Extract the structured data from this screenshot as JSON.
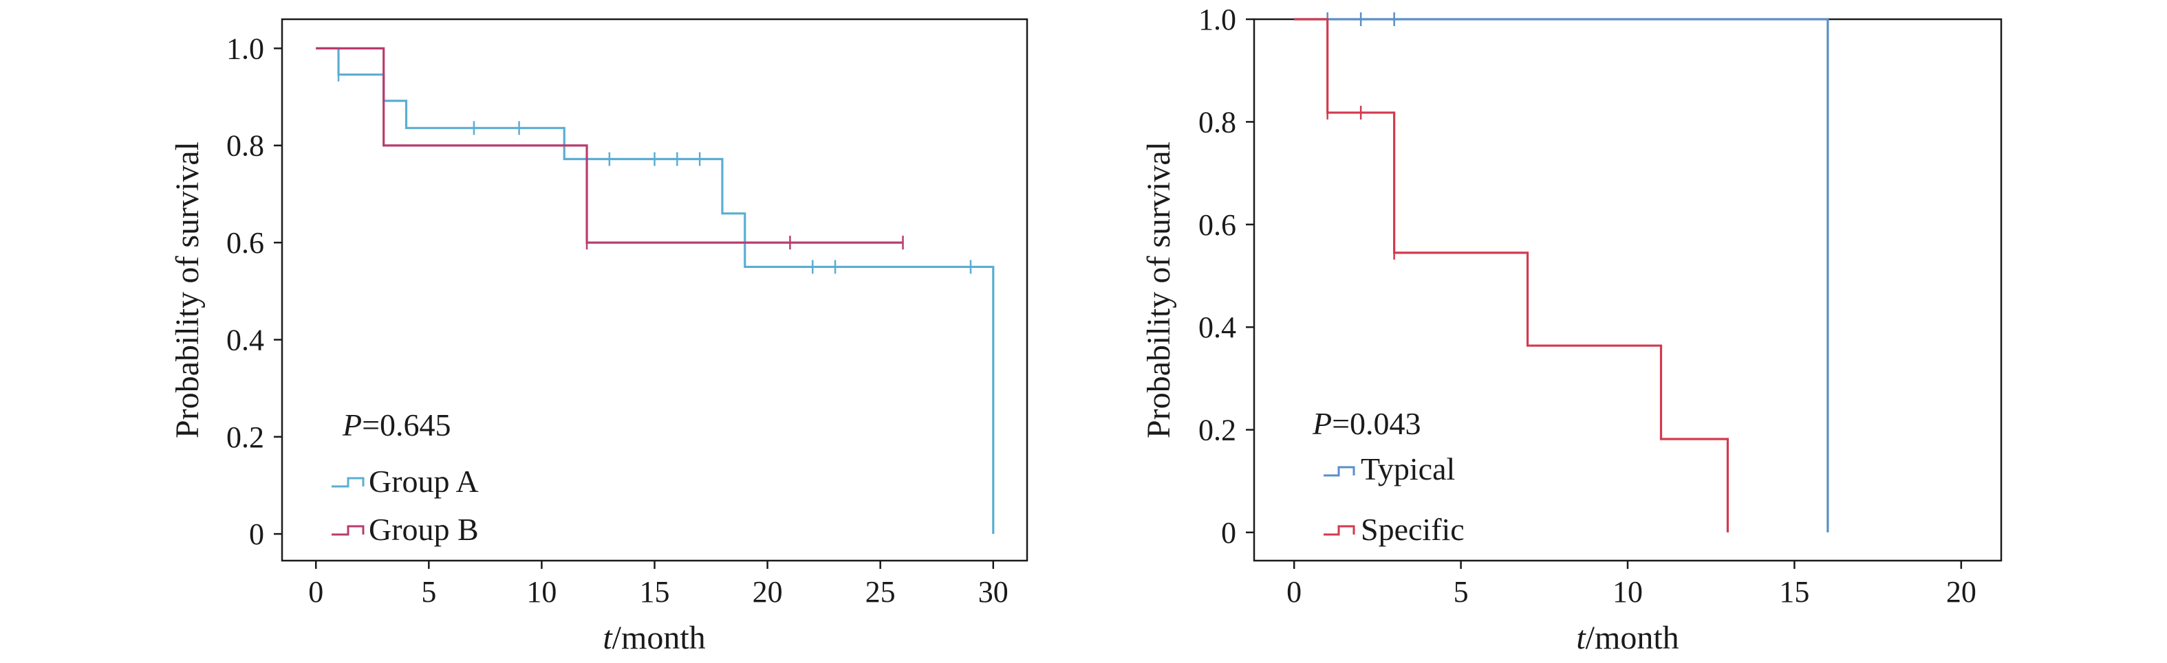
{
  "chart_data": [
    {
      "type": "line",
      "step": true,
      "xlabel_italic": "t",
      "xlabel_rest": "/month",
      "ylabel": "Probability of survival",
      "xlim": [
        -1.5,
        31.5
      ],
      "ylim": [
        -0.055,
        1.06
      ],
      "xticks": [
        0,
        5,
        10,
        15,
        20,
        25,
        30
      ],
      "yticks": [
        0,
        0.2,
        0.4,
        0.6,
        0.8,
        1.0
      ],
      "ytick_labels": [
        "0",
        "0.2",
        "0.4",
        "0.6",
        "0.8",
        "1.0"
      ],
      "pvalue_label": "P",
      "pvalue_text": "=0.645",
      "legend_position": "bottom-left",
      "series": [
        {
          "name": "Group A",
          "color": "#5aaed3",
          "steps": [
            [
              0,
              1.0
            ],
            [
              1,
              0.946
            ],
            [
              3,
              0.892
            ],
            [
              4,
              0.836
            ],
            [
              11,
              0.772
            ],
            [
              18,
              0.66
            ],
            [
              19,
              0.55
            ],
            [
              30,
              0.0
            ]
          ],
          "censored": [
            [
              1,
              0.946
            ],
            [
              7,
              0.836
            ],
            [
              9,
              0.836
            ],
            [
              13,
              0.772
            ],
            [
              15,
              0.772
            ],
            [
              16,
              0.772
            ],
            [
              17,
              0.772
            ],
            [
              22,
              0.55
            ],
            [
              23,
              0.55
            ],
            [
              29,
              0.55
            ]
          ],
          "end_x": 30
        },
        {
          "name": "Group B",
          "color": "#b83d6e",
          "steps": [
            [
              0,
              1.0
            ],
            [
              3,
              0.8
            ],
            [
              12,
              0.6
            ]
          ],
          "censored": [
            [
              12,
              0.6
            ],
            [
              21,
              0.6
            ],
            [
              26,
              0.6
            ]
          ],
          "end_x": 26
        }
      ]
    },
    {
      "type": "line",
      "step": true,
      "xlabel_italic": "t",
      "xlabel_rest": "/month",
      "ylabel": "Probability of survival",
      "xlim": [
        -1.2,
        21.2
      ],
      "ylim": [
        -0.055,
        1.0
      ],
      "xticks": [
        0,
        5,
        10,
        15,
        20
      ],
      "yticks": [
        0,
        0.2,
        0.4,
        0.6,
        0.8,
        1.0
      ],
      "ytick_labels": [
        "0",
        "0.2",
        "0.4",
        "0.6",
        "0.8",
        "1.0"
      ],
      "pvalue_label": "P",
      "pvalue_text": "=0.043",
      "legend_position": "bottom-left",
      "series": [
        {
          "name": "Typical",
          "color": "#5a8fc6",
          "steps": [
            [
              0,
              1.0
            ],
            [
              16,
              0.0
            ]
          ],
          "censored": [
            [
              1,
              1.0
            ],
            [
              2,
              1.0
            ],
            [
              3,
              1.0
            ]
          ],
          "end_x": 16
        },
        {
          "name": "Specific",
          "color": "#d23a4e",
          "steps": [
            [
              0,
              1.0
            ],
            [
              1,
              0.818
            ],
            [
              3,
              0.545
            ],
            [
              7,
              0.364
            ],
            [
              11,
              0.182
            ],
            [
              13,
              0.0
            ]
          ],
          "censored": [
            [
              1,
              0.818
            ],
            [
              2,
              0.818
            ],
            [
              3,
              0.545
            ]
          ],
          "end_x": 13
        }
      ]
    }
  ]
}
